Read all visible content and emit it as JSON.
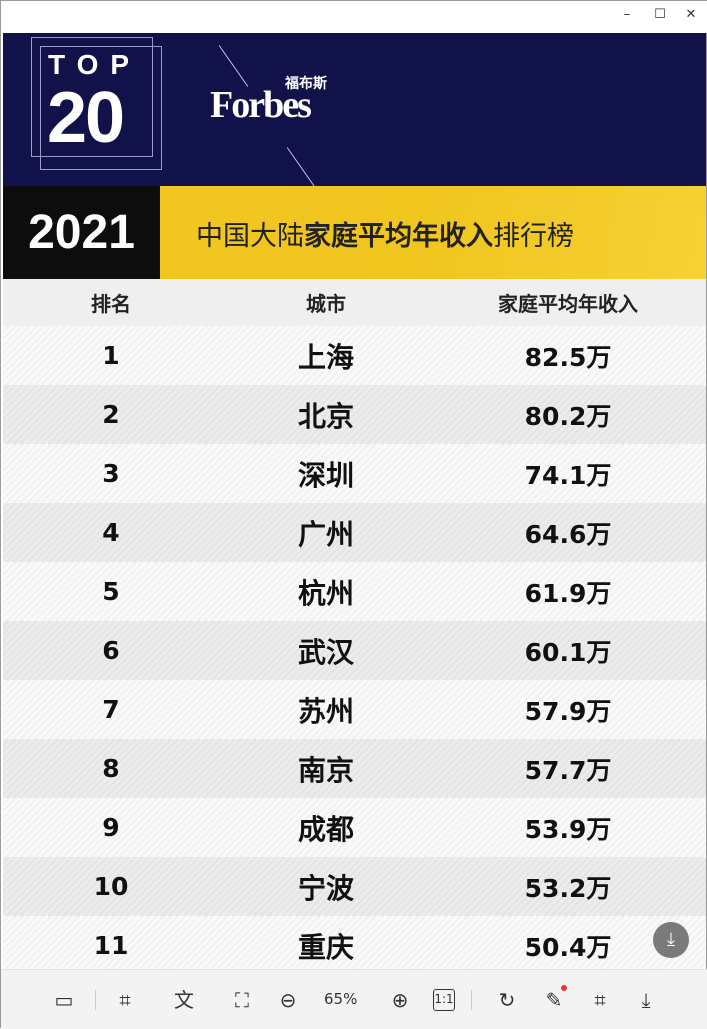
{
  "window": {
    "minimize": "–",
    "maximize": "☐",
    "close": "✕"
  },
  "image": {
    "top_label": "TOP",
    "top_number": "20",
    "brand": "Forbes",
    "brand_cn": "福布斯",
    "year": "2021",
    "title_pre": "中国大陆",
    "title_bold": "家庭平均年收入",
    "title_post": "排行榜",
    "columns": [
      "排名",
      "城市",
      "家庭平均年收入"
    ],
    "rows": [
      {
        "rank": "1",
        "city": "上海",
        "income": "82.5万"
      },
      {
        "rank": "2",
        "city": "北京",
        "income": "80.2万"
      },
      {
        "rank": "3",
        "city": "深圳",
        "income": "74.1万"
      },
      {
        "rank": "4",
        "city": "广州",
        "income": "64.6万"
      },
      {
        "rank": "5",
        "city": "杭州",
        "income": "61.9万"
      },
      {
        "rank": "6",
        "city": "武汉",
        "income": "60.1万"
      },
      {
        "rank": "7",
        "city": "苏州",
        "income": "57.9万"
      },
      {
        "rank": "8",
        "city": "南京",
        "income": "57.7万"
      },
      {
        "rank": "9",
        "city": "成都",
        "income": "53.9万"
      },
      {
        "rank": "10",
        "city": "宁波",
        "income": "53.2万"
      },
      {
        "rank": "11",
        "city": "重庆",
        "income": "50.4万"
      }
    ],
    "colors": {
      "navy": "#12124a",
      "yellow": "#f2c623",
      "black": "#0d0d0d"
    }
  },
  "toolbar": {
    "zoom_level": "65%",
    "actual_size": "1:1"
  }
}
